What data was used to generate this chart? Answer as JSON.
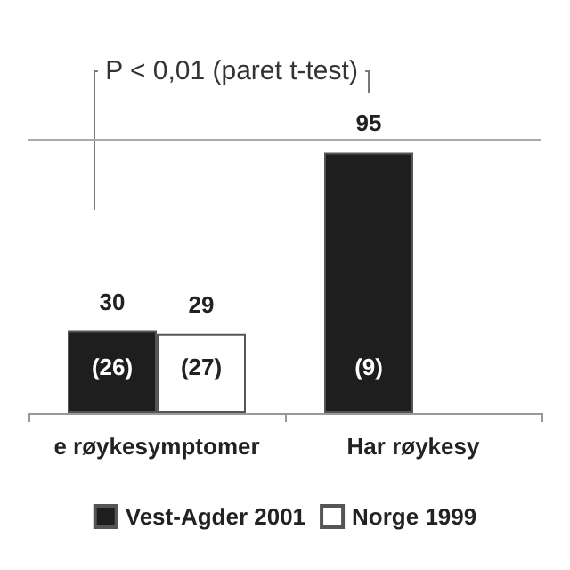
{
  "chart_data": {
    "type": "bar",
    "categories": [
      "e røykesymptomer",
      "Har røykesy"
    ],
    "series": [
      {
        "name": "Vest-Agder 2001",
        "color": "#1e1e1e",
        "values": [
          30,
          95
        ]
      },
      {
        "name": "Norge 1999",
        "color": "#ffffff",
        "values": [
          29,
          null
        ]
      }
    ],
    "ylim": [
      0,
      100
    ],
    "ref_lines": [
      {
        "axis": "y",
        "value": 100,
        "color": "#aaaaaa"
      }
    ],
    "data_labels": true,
    "legend": "bottom",
    "annotations": [
      "P < 0,01 (paret t-test)",
      "(26)",
      "(27)",
      "(9)"
    ]
  }
}
